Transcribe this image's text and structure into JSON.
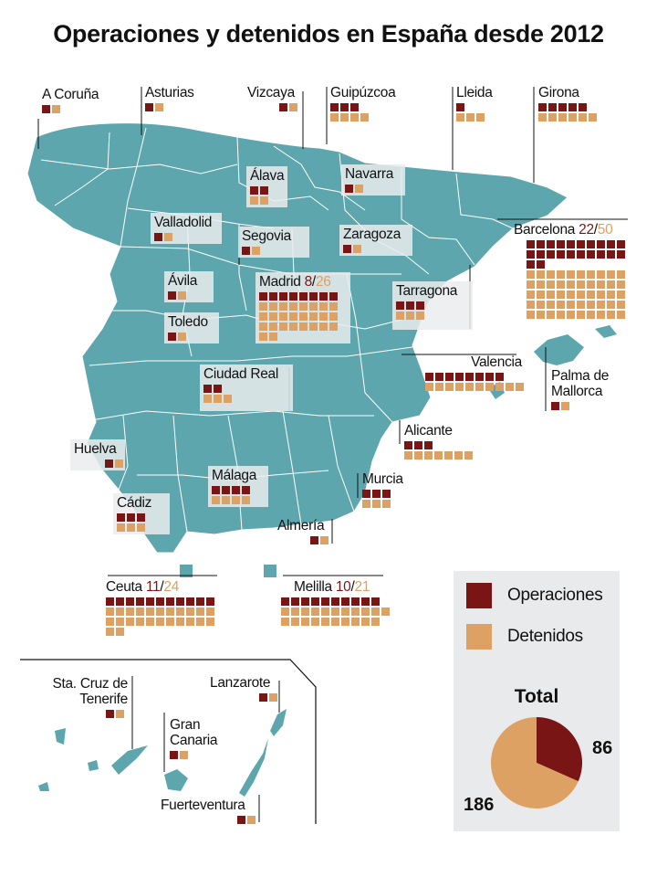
{
  "title": "Operaciones y detenidos en España desde 2012",
  "colors": {
    "operaciones": "#7a1516",
    "detenidos": "#dda163",
    "land": "#5da6ae",
    "borders": "#ffffff",
    "label_bg": "#e9eaeb"
  },
  "legend": {
    "operaciones": "Operaciones",
    "detenidos": "Detenidos"
  },
  "total": {
    "title": "Total",
    "operaciones": 86,
    "detenidos": 186
  },
  "regions": [
    {
      "name": "A Coruña",
      "op": 1,
      "de": 1
    },
    {
      "name": "Asturias",
      "op": 1,
      "de": 1
    },
    {
      "name": "Vizcaya",
      "op": 1,
      "de": 1
    },
    {
      "name": "Guipúzcoa",
      "op": 3,
      "de": 4
    },
    {
      "name": "Lleida",
      "op": 1,
      "de": 3
    },
    {
      "name": "Girona",
      "op": 5,
      "de": 6
    },
    {
      "name": "Álava",
      "op": 2,
      "de": 2
    },
    {
      "name": "Navarra",
      "op": 1,
      "de": 1
    },
    {
      "name": "Valladolid",
      "op": 1,
      "de": 1
    },
    {
      "name": "Segovia",
      "op": 1,
      "de": 1
    },
    {
      "name": "Zaragoza",
      "op": 1,
      "de": 1
    },
    {
      "name": "Barcelona",
      "op": 22,
      "de": 50,
      "op_text": "22",
      "sep": "/",
      "de_text": "50"
    },
    {
      "name": "Ávila",
      "op": 1,
      "de": 1
    },
    {
      "name": "Madrid",
      "op": 8,
      "de": 26,
      "op_text": "8",
      "sep": "/",
      "de_text": "26"
    },
    {
      "name": "Tarragona",
      "op": 3,
      "de": 3
    },
    {
      "name": "Toledo",
      "op": 1,
      "de": 1
    },
    {
      "name": "Ciudad Real",
      "op": 2,
      "de": 3
    },
    {
      "name": "Valencia",
      "op": 8,
      "de": 10
    },
    {
      "name": "Palma de Mallorca",
      "op": 1,
      "de": 1
    },
    {
      "name": "Alicante",
      "op": 3,
      "de": 7
    },
    {
      "name": "Huelva",
      "op": 1,
      "de": 1
    },
    {
      "name": "Málaga",
      "op": 4,
      "de": 4
    },
    {
      "name": "Murcia",
      "op": 3,
      "de": 3
    },
    {
      "name": "Cádiz",
      "op": 3,
      "de": 3
    },
    {
      "name": "Almería",
      "op": 1,
      "de": 1
    },
    {
      "name": "Ceuta",
      "op": 11,
      "de": 24,
      "op_text": "11",
      "sep": "/",
      "de_text": "24"
    },
    {
      "name": "Melilla",
      "op": 10,
      "de": 21,
      "op_text": "10",
      "sep": "/",
      "de_text": "21"
    },
    {
      "name": "Sta. Cruz de Tenerife",
      "op": 1,
      "de": 1
    },
    {
      "name": "Lanzarote",
      "op": 1,
      "de": 1
    },
    {
      "name": "Gran Canaria",
      "op": 1,
      "de": 1
    },
    {
      "name": "Fuerteventura",
      "op": 1,
      "de": 1
    }
  ]
}
